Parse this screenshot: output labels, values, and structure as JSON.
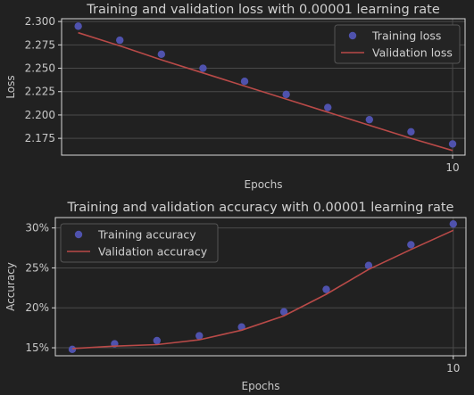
{
  "chart_data": [
    {
      "type": "line",
      "title": "Training and validation loss with 0.00001 learning rate",
      "xlabel": "Epochs",
      "ylabel": "Loss",
      "xlim": [
        0.6,
        10.3
      ],
      "ylim": [
        2.157,
        2.303
      ],
      "x_ticks": [
        10
      ],
      "y_ticks": [
        2.175,
        2.2,
        2.225,
        2.25,
        2.275,
        2.3
      ],
      "y_tick_labels": [
        "2.175",
        "2.200",
        "2.225",
        "2.250",
        "2.275",
        "2.300"
      ],
      "grid": true,
      "legend_position": "top-right",
      "series": [
        {
          "name": "Training loss",
          "kind": "scatter",
          "color": "#4f52ad",
          "x": [
            1,
            2,
            3,
            4,
            5,
            6,
            7,
            8,
            9,
            10
          ],
          "values": [
            2.295,
            2.28,
            2.265,
            2.25,
            2.236,
            2.222,
            2.208,
            2.195,
            2.182,
            2.169
          ]
        },
        {
          "name": "Validation loss",
          "kind": "line",
          "color": "#b94a48",
          "x": [
            1,
            2,
            3,
            4,
            5,
            6,
            7,
            8,
            9,
            10
          ],
          "values": [
            2.288,
            2.274,
            2.259,
            2.245,
            2.231,
            2.217,
            2.203,
            2.189,
            2.175,
            2.162
          ]
        }
      ]
    },
    {
      "type": "line",
      "title": "Training and validation accuracy with 0.00001 learning rate",
      "xlabel": "Epochs",
      "ylabel": "Accuracy",
      "xlim": [
        0.6,
        10.3
      ],
      "ylim": [
        14.0,
        31.3
      ],
      "x_ticks": [
        10
      ],
      "y_ticks": [
        15,
        20,
        25,
        30
      ],
      "y_tick_labels": [
        "15%",
        "20%",
        "25%",
        "30%"
      ],
      "grid": true,
      "legend_position": "top-left",
      "series": [
        {
          "name": "Training accuracy",
          "kind": "scatter",
          "color": "#4f52ad",
          "x": [
            1,
            2,
            3,
            4,
            5,
            6,
            7,
            8,
            9,
            10
          ],
          "values": [
            14.8,
            15.5,
            15.9,
            16.5,
            17.6,
            19.5,
            22.3,
            25.3,
            27.9,
            30.5
          ]
        },
        {
          "name": "Validation accuracy",
          "kind": "line",
          "color": "#b94a48",
          "x": [
            1,
            2,
            3,
            4,
            5,
            6,
            7,
            8,
            9,
            10
          ],
          "values": [
            14.9,
            15.2,
            15.4,
            16.0,
            17.2,
            19.0,
            21.7,
            24.8,
            27.3,
            29.7
          ]
        }
      ]
    }
  ]
}
